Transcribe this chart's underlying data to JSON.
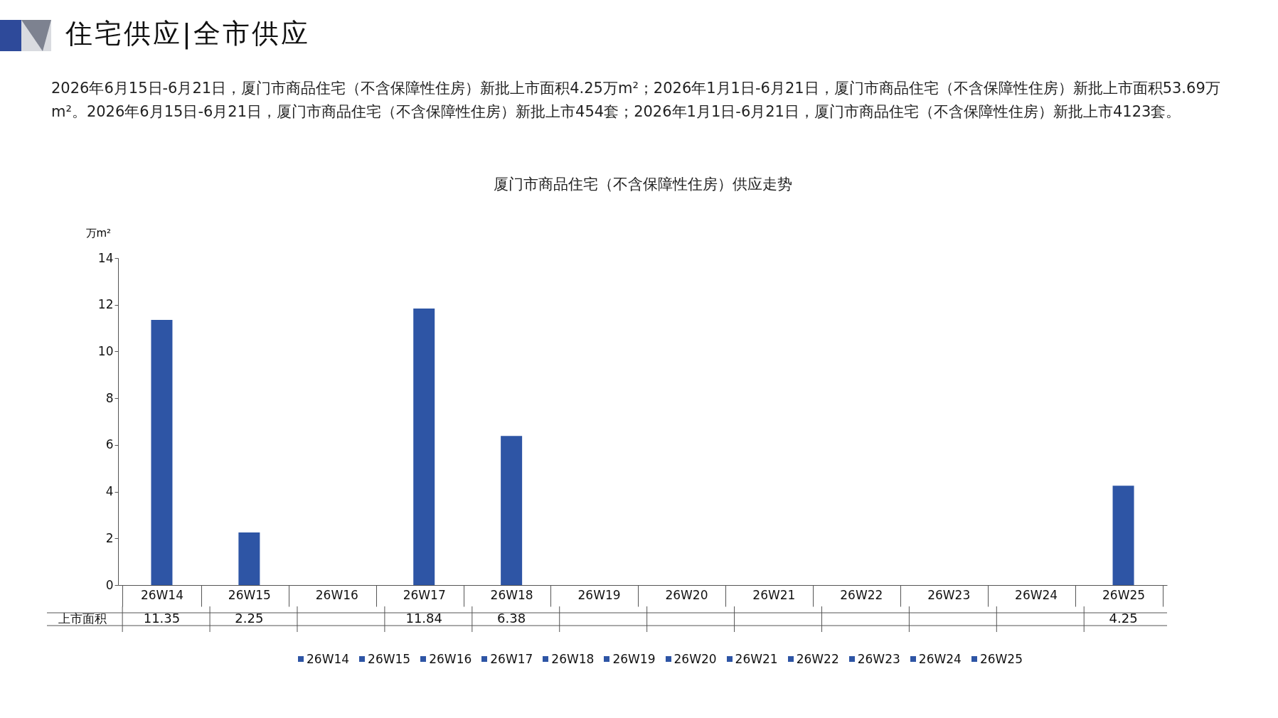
{
  "chart_data": {
    "type": "bar",
    "title": "厦门市商品住宅（不含保障性住房）供应走势",
    "ylabel": "万m²",
    "annotations": [
      "住宅供应|全市供应",
      "2026年6月15日-6月21日，厦门市商品住宅（不含保障性住房）新批上市面积4.25万m²；2026年1月1日-6月21日，厦门市商品住宅（不含保障性住房）新批上市面积53.69万m²。2026年6月15日-6月21日，厦门市商品住宅（不含保障性住房）新批上市454套；2026年1月1日-6月21日，厦门市商品住宅（不含保障性住房）新批上市4123套。"
    ],
    "categories": [
      "26W14",
      "26W15",
      "26W16",
      "26W17",
      "26W18",
      "26W19",
      "26W20",
      "26W21",
      "26W22",
      "26W23",
      "26W24",
      "26W25"
    ],
    "series": [
      {
        "name": "上市面积",
        "colors": [
          "#2e55a5",
          "#2e55a5",
          "#2e55a5",
          "#2e55a5",
          "#2e55a5",
          "#2e55a5",
          "#2e55a5",
          "#2e55a5",
          "#2e55a5",
          "#2e55a5",
          "#2e55a5",
          "#2e55a5"
        ],
        "values": [
          11.35,
          2.25,
          null,
          11.84,
          6.38,
          null,
          null,
          null,
          null,
          null,
          null,
          4.25
        ]
      }
    ],
    "ylim": [
      0,
      14
    ],
    "yticks": [
      0,
      2,
      4,
      6,
      8,
      10,
      12,
      14
    ],
    "grid": false,
    "data_labels": true,
    "legend": "bottom"
  }
}
